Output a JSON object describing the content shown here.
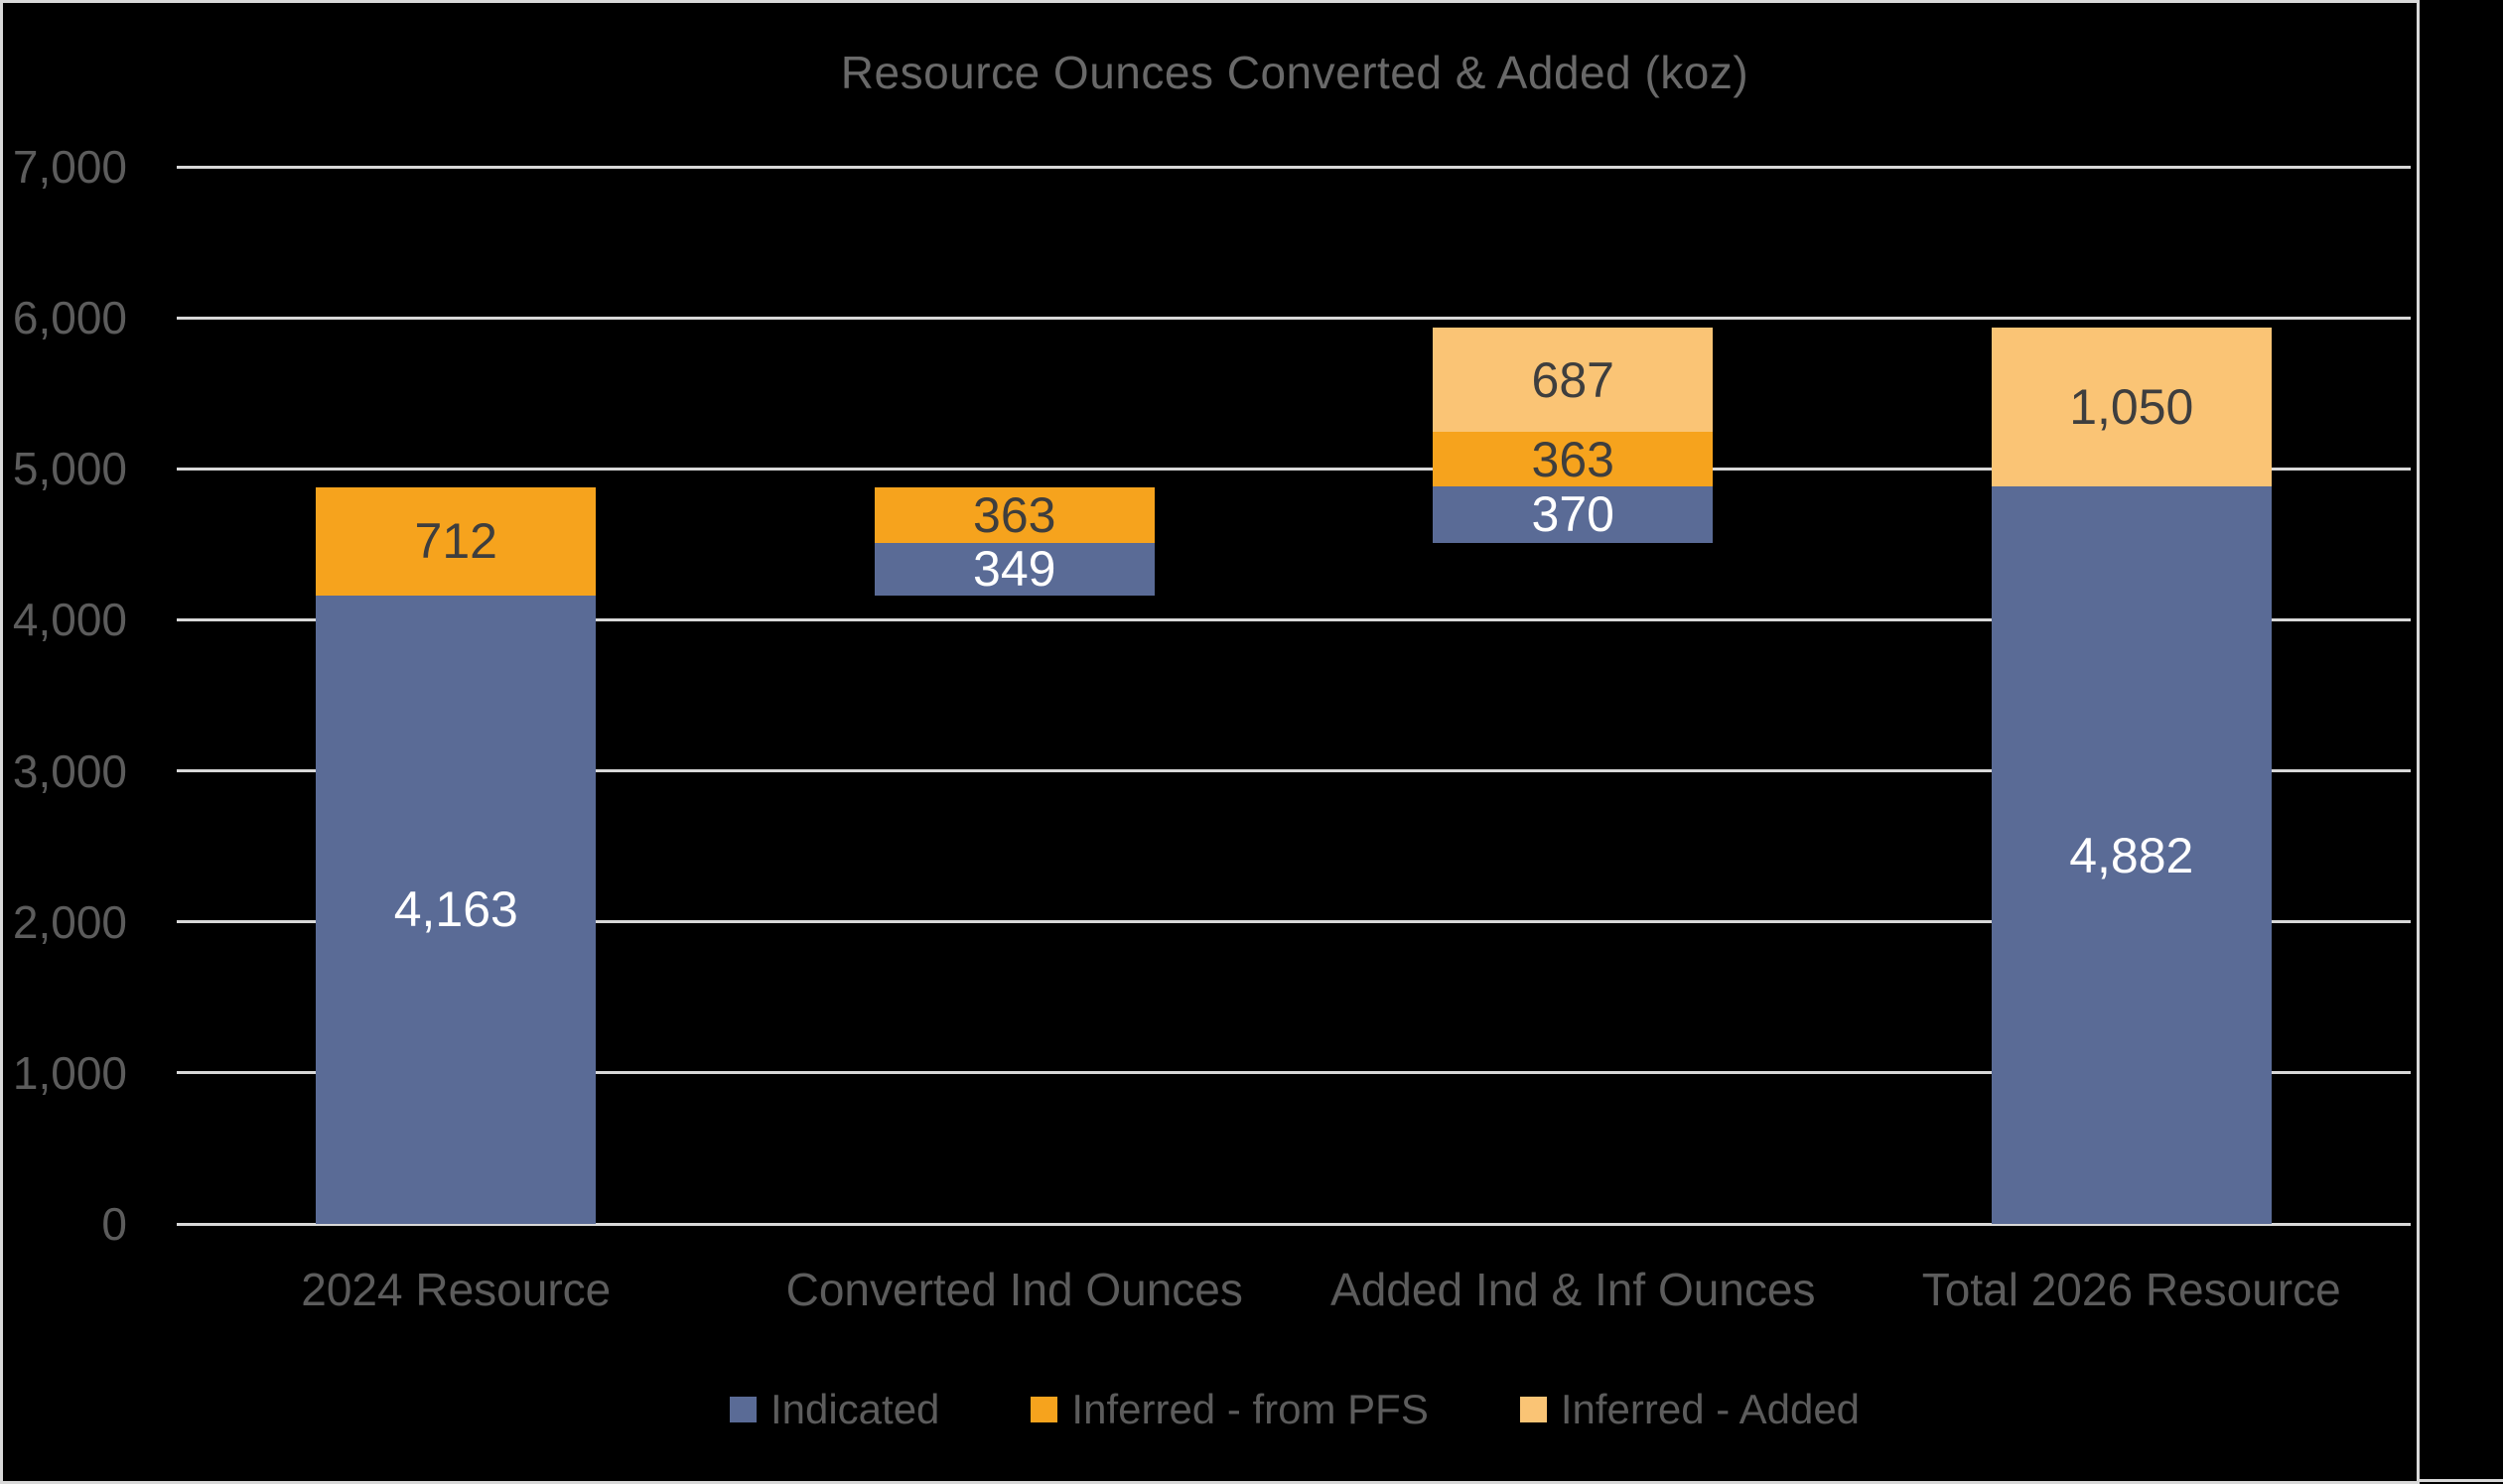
{
  "style": {
    "background": "#000000",
    "frame_color": "#d8d8d8",
    "grid_color": "#d8d8d8",
    "title_color": "#696969",
    "axis_text_color": "#5c5c5c",
    "value_text_dark": "#3e3e3e",
    "value_text_light": "#ffffff"
  },
  "chart_data": {
    "type": "bar",
    "subtype": "stacked-waterfall",
    "title": "Resource Ounces Converted & Added (koz)",
    "xlabel": "",
    "ylabel": "",
    "y_axis": {
      "min": 0,
      "max": 7000,
      "tick_step": 1000,
      "tick_labels": [
        "0",
        "1,000",
        "2,000",
        "3,000",
        "4,000",
        "5,000",
        "6,000",
        "7,000"
      ],
      "grid": true
    },
    "categories": [
      "2024 Resource",
      "Converted Ind Ounces",
      "Added Ind & Inf Ounces",
      "Total 2026 Resource"
    ],
    "series_names": [
      "Indicated",
      "Inferred - from PFS",
      "Inferred - Added"
    ],
    "colors": {
      "Indicated": "#5a6b96",
      "Inferred - from PFS": "#f6a31d",
      "Inferred - Added": "#fac475"
    },
    "label_text_colors": {
      "Indicated": "#ffffff",
      "Inferred - from PFS": "#3e3e3e",
      "Inferred - Added": "#3e3e3e"
    },
    "bars": [
      {
        "category": "2024 Resource",
        "base": 0,
        "segments": [
          {
            "series": "Indicated",
            "value": 4163,
            "label": "4,163"
          },
          {
            "series": "Inferred - from PFS",
            "value": 712,
            "label": "712"
          }
        ]
      },
      {
        "category": "Converted Ind Ounces",
        "base": 4163,
        "segments": [
          {
            "series": "Indicated",
            "value": 349,
            "label": "349"
          },
          {
            "series": "Inferred - from PFS",
            "value": 363,
            "label": "363"
          }
        ]
      },
      {
        "category": "Added Ind & Inf Ounces",
        "base": 4512,
        "segments": [
          {
            "series": "Indicated",
            "value": 370,
            "label": "370"
          },
          {
            "series": "Inferred - from PFS",
            "value": 363,
            "label": "363"
          },
          {
            "series": "Inferred - Added",
            "value": 687,
            "label": "687"
          }
        ]
      },
      {
        "category": "Total 2026 Resource",
        "base": 0,
        "segments": [
          {
            "series": "Indicated",
            "value": 4882,
            "label": "4,882"
          },
          {
            "series": "Inferred - Added",
            "value": 1050,
            "label": "1,050"
          }
        ]
      }
    ],
    "legend": [
      {
        "label": "Indicated",
        "color": "#5a6b96"
      },
      {
        "label": "Inferred - from PFS",
        "color": "#f6a31d"
      },
      {
        "label": "Inferred - Added",
        "color": "#fac475"
      }
    ],
    "legend_position": "bottom"
  }
}
